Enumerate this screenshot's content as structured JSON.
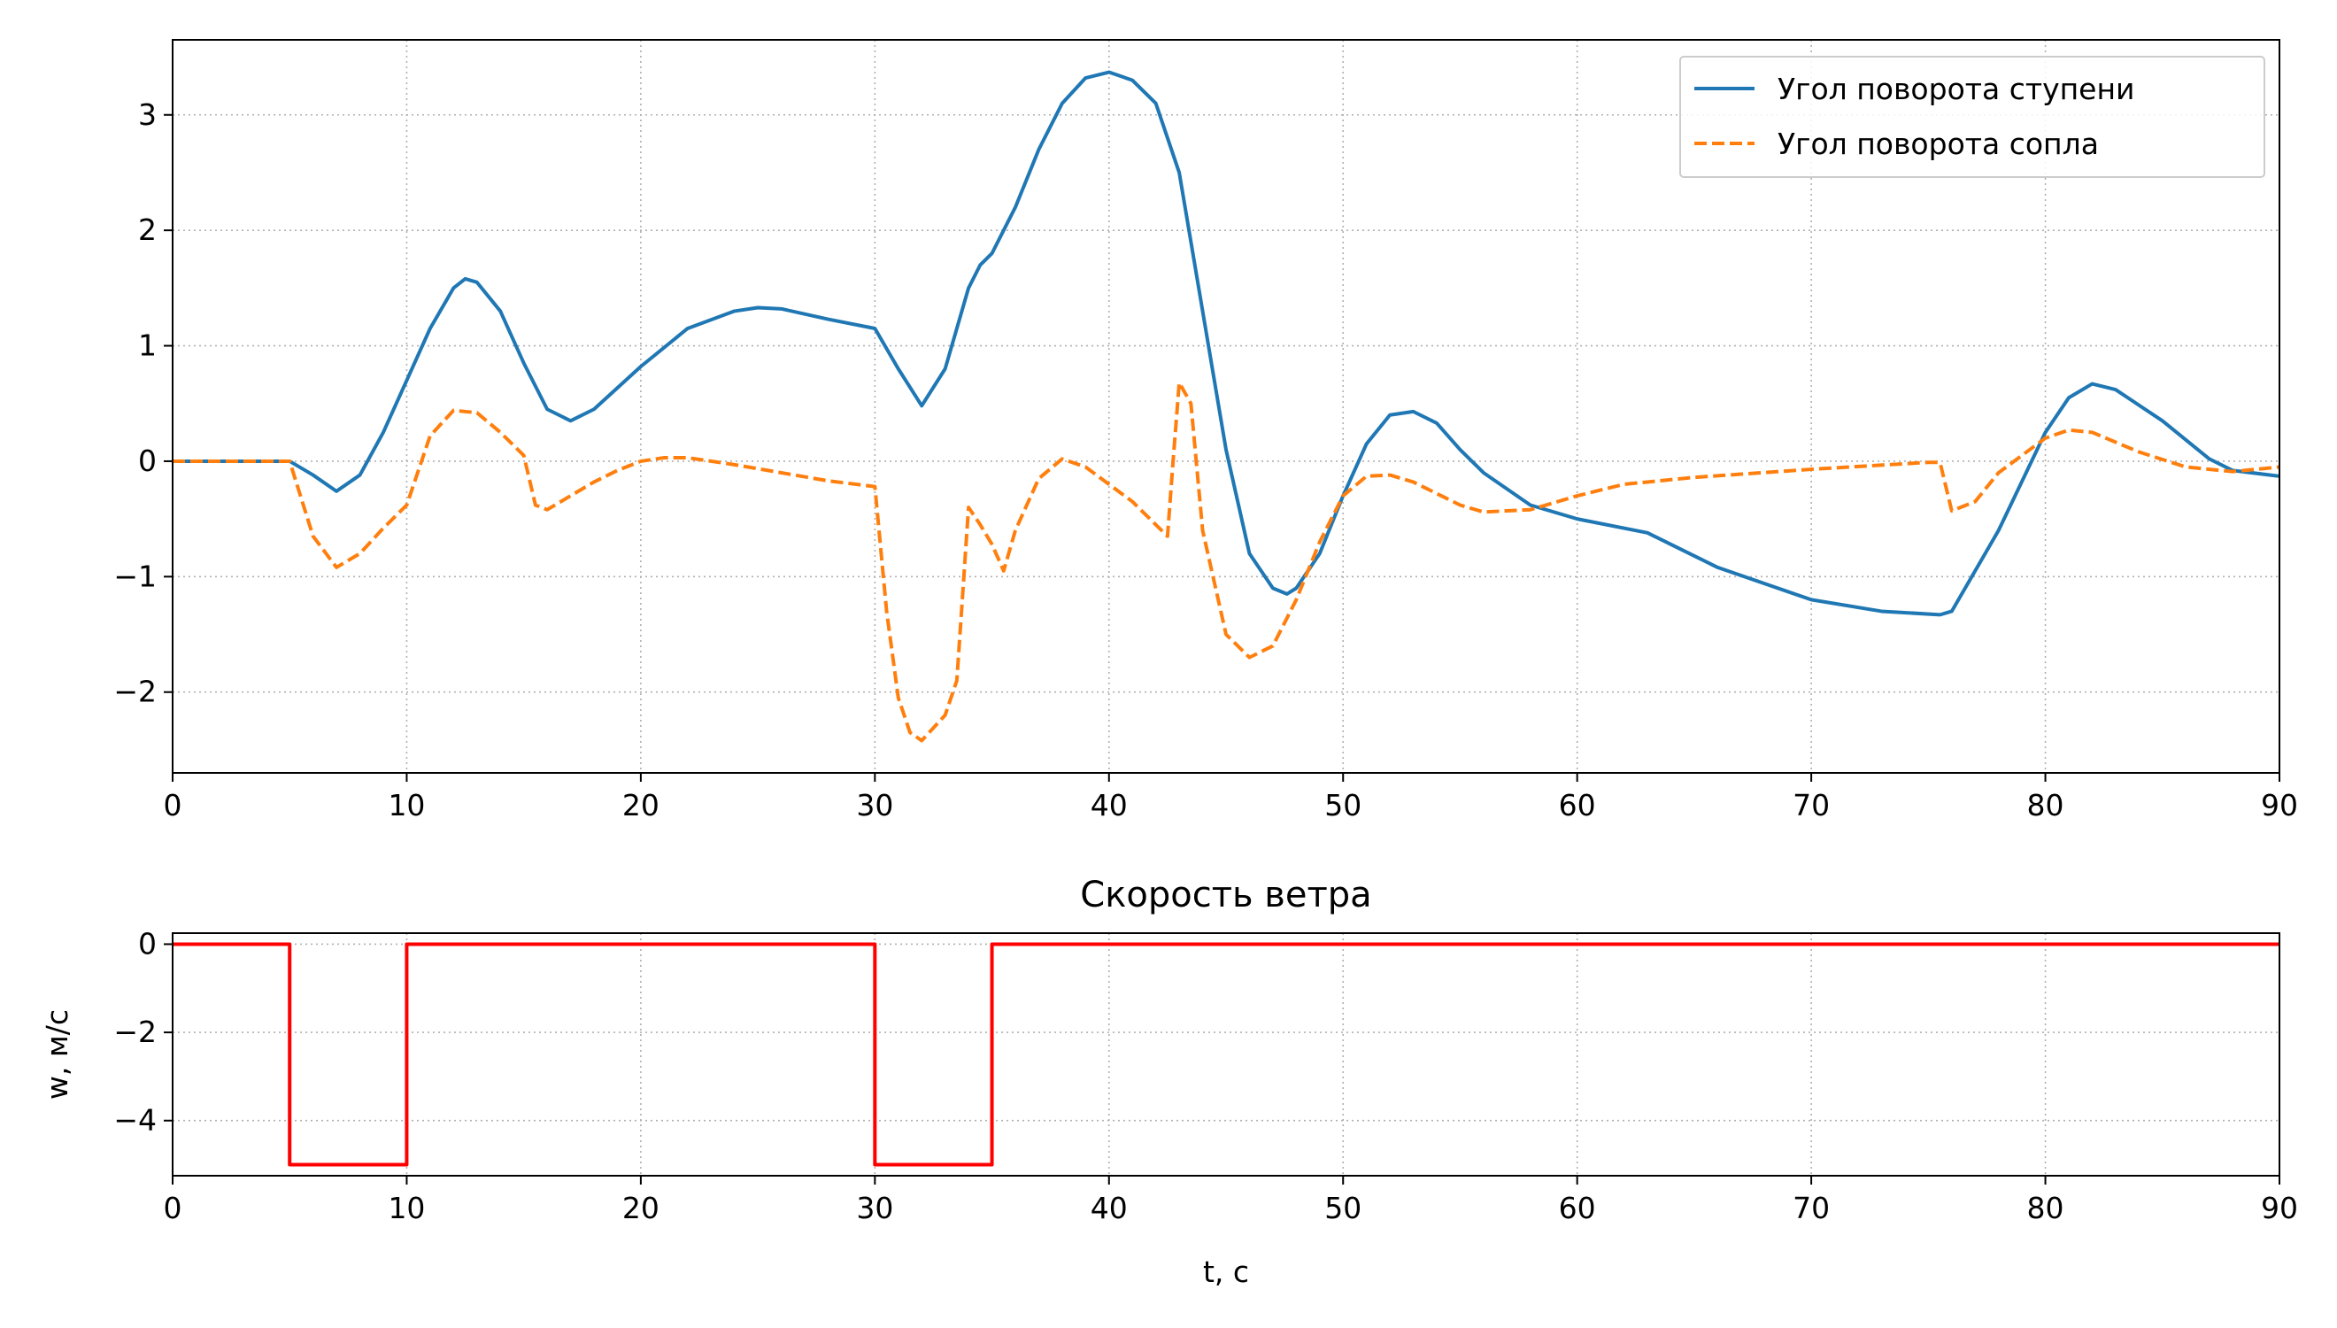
{
  "chart_data": [
    {
      "type": "line",
      "title": "",
      "xlabel": "",
      "ylabel": "",
      "xlim": [
        0,
        90
      ],
      "ylim": [
        -2.7,
        3.65
      ],
      "xticks": [
        0,
        10,
        20,
        30,
        40,
        50,
        60,
        70,
        80,
        90
      ],
      "xtick_labels": [
        "0",
        "10",
        "20",
        "30",
        "40",
        "50",
        "60",
        "70",
        "80",
        "90"
      ],
      "yticks": [
        3,
        2,
        1,
        0,
        -1,
        -2
      ],
      "ytick_labels": [
        "3",
        "2",
        "1",
        "0",
        "−1",
        "−2"
      ],
      "grid": true,
      "legend": "top-right",
      "series": [
        {
          "name": "Угол поворота ступени",
          "color": "#1f77b4",
          "style": "solid",
          "x": [
            0,
            5,
            6,
            7,
            8,
            9,
            10,
            11,
            12,
            12.5,
            13,
            14,
            15,
            16,
            17,
            18,
            20,
            22,
            24,
            25,
            26,
            28,
            30,
            31,
            32,
            33,
            34,
            34.5,
            35,
            36,
            37,
            38,
            39,
            40,
            41,
            42,
            43,
            44,
            45,
            46,
            47,
            47.6,
            48,
            49,
            50,
            51,
            52,
            53,
            54,
            55,
            56,
            58,
            60,
            63,
            66,
            70,
            73,
            75.5,
            76,
            78,
            80,
            81,
            82,
            83,
            85,
            87,
            88,
            90
          ],
          "y": [
            0,
            0,
            -0.12,
            -0.26,
            -0.12,
            0.25,
            0.7,
            1.15,
            1.5,
            1.58,
            1.55,
            1.3,
            0.85,
            0.45,
            0.35,
            0.45,
            0.82,
            1.15,
            1.3,
            1.33,
            1.32,
            1.23,
            1.15,
            0.8,
            0.48,
            0.8,
            1.5,
            1.7,
            1.8,
            2.2,
            2.7,
            3.1,
            3.32,
            3.37,
            3.3,
            3.1,
            2.5,
            1.3,
            0.1,
            -0.8,
            -1.1,
            -1.15,
            -1.1,
            -0.8,
            -0.3,
            0.15,
            0.4,
            0.43,
            0.33,
            0.1,
            -0.1,
            -0.38,
            -0.5,
            -0.62,
            -0.92,
            -1.2,
            -1.3,
            -1.33,
            -1.3,
            -0.6,
            0.25,
            0.55,
            0.67,
            0.62,
            0.35,
            0.02,
            -0.08,
            -0.13
          ]
        },
        {
          "name": "Угол поворота сопла",
          "color": "#ff7f0e",
          "style": "dashed",
          "x": [
            0,
            5,
            6,
            7,
            8,
            9,
            10,
            11,
            12,
            13,
            14,
            15,
            15.5,
            16,
            17,
            18,
            19,
            20,
            21,
            22,
            24,
            26,
            28,
            30,
            30.5,
            31,
            31.5,
            32,
            33,
            33.5,
            34,
            34.5,
            35,
            35.5,
            36,
            37,
            38,
            39,
            40,
            41,
            42,
            42.5,
            42.7,
            43,
            43.5,
            44,
            45,
            46,
            47,
            48,
            49,
            50,
            51,
            52,
            53,
            54,
            55,
            56,
            58,
            60,
            62,
            65,
            70,
            75,
            75.5,
            76,
            77,
            78,
            80,
            81,
            82,
            84,
            86,
            88,
            90
          ],
          "y": [
            0,
            0,
            -0.65,
            -0.92,
            -0.8,
            -0.58,
            -0.38,
            0.22,
            0.44,
            0.42,
            0.25,
            0.05,
            -0.38,
            -0.42,
            -0.3,
            -0.18,
            -0.08,
            0.0,
            0.03,
            0.03,
            -0.03,
            -0.1,
            -0.17,
            -0.22,
            -1.3,
            -2.05,
            -2.35,
            -2.42,
            -2.2,
            -1.9,
            -0.4,
            -0.55,
            -0.72,
            -0.95,
            -0.6,
            -0.15,
            0.02,
            -0.05,
            -0.2,
            -0.35,
            -0.55,
            -0.65,
            -0.1,
            0.68,
            0.5,
            -0.6,
            -1.5,
            -1.7,
            -1.6,
            -1.2,
            -0.7,
            -0.3,
            -0.13,
            -0.12,
            -0.18,
            -0.28,
            -0.38,
            -0.44,
            -0.42,
            -0.3,
            -0.2,
            -0.14,
            -0.07,
            -0.01,
            -0.01,
            -0.43,
            -0.35,
            -0.1,
            0.2,
            0.27,
            0.25,
            0.08,
            -0.05,
            -0.09,
            -0.05
          ]
        }
      ]
    },
    {
      "type": "line",
      "title": "Скорость ветра",
      "xlabel": "t, с",
      "ylabel": "w, м/с",
      "xlim": [
        0,
        90
      ],
      "ylim": [
        -5.25,
        0.25
      ],
      "xticks": [
        0,
        10,
        20,
        30,
        40,
        50,
        60,
        70,
        80,
        90
      ],
      "xtick_labels": [
        "0",
        "10",
        "20",
        "30",
        "40",
        "50",
        "60",
        "70",
        "80",
        "90"
      ],
      "yticks": [
        0,
        -2,
        -4
      ],
      "ytick_labels": [
        "0",
        "−2",
        "−4"
      ],
      "grid": true,
      "series": [
        {
          "color": "#ff0000",
          "style": "solid",
          "x": [
            0,
            5,
            5,
            10,
            10,
            30,
            30,
            35,
            35,
            90
          ],
          "y": [
            0,
            0,
            -5,
            -5,
            0,
            0,
            -5,
            -5,
            0,
            0
          ]
        }
      ]
    }
  ]
}
